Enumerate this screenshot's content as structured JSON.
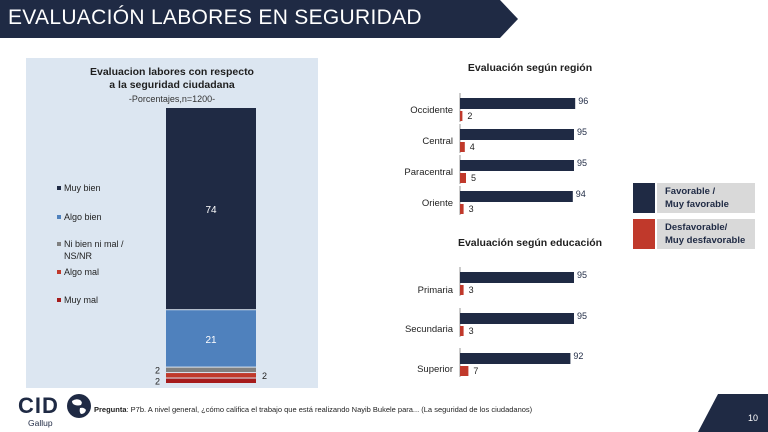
{
  "header": {
    "title": "EVALUACIÓN LABORES EN SEGURIDAD"
  },
  "colors": {
    "navy": "#1f2a44",
    "blue": "#4f81bd",
    "gray": "#808080",
    "red": "#c0392b",
    "darkred": "#a61c1c"
  },
  "chart_data": [
    {
      "type": "bar",
      "stacked": true,
      "title": "Evaluacion labores con respecto a la seguridad ciudadana",
      "title_lines": [
        "Evaluacion labores con respecto",
        "a la seguridad ciudadana"
      ],
      "subtitle": "-Porcentajes,n=1200-",
      "series": [
        {
          "name": "Muy bien",
          "value": 74,
          "color": "#1f2a44"
        },
        {
          "name": "Algo bien",
          "value": 21,
          "color": "#4f81bd"
        },
        {
          "name": "Ni bien ni mal / NS/NR",
          "value": 2,
          "color": "#808080"
        },
        {
          "name": "Algo mal",
          "value": 2,
          "color": "#c0392b"
        },
        {
          "name": "Muy mal",
          "value": 2,
          "color": "#a61c1c"
        }
      ],
      "legend_lines": [
        [
          "Muy bien"
        ],
        [
          "Algo bien"
        ],
        [
          "Ni bien ni mal /",
          "NS/NR"
        ],
        [
          "Algo mal"
        ],
        [
          "Muy mal"
        ]
      ],
      "segment_labels": [
        "74",
        "21",
        "2",
        "2",
        "2"
      ]
    },
    {
      "type": "bar",
      "orientation": "horizontal",
      "title": "Evaluación según región",
      "categories": [
        "Occidente",
        "Central",
        "Paracentral",
        "Oriente"
      ],
      "series": [
        {
          "name": "Favorable / Muy favorable",
          "values": [
            96,
            95,
            95,
            94
          ]
        },
        {
          "name": "Desfavorable/ Muy desfavorable",
          "values": [
            2,
            4,
            5,
            3
          ]
        }
      ],
      "xlim": [
        0,
        100
      ]
    },
    {
      "type": "bar",
      "orientation": "horizontal",
      "title": "Evaluación según educación",
      "categories": [
        "Primaria",
        "Secundaria",
        "Superior"
      ],
      "series": [
        {
          "name": "Favorable / Muy favorable",
          "values": [
            95,
            95,
            92
          ]
        },
        {
          "name": "Desfavorable/ Muy desfavorable",
          "values": [
            3,
            3,
            7
          ]
        }
      ],
      "xlim": [
        0,
        100
      ]
    }
  ],
  "legend": {
    "favorable": [
      "Favorable /",
      "Muy favorable"
    ],
    "desfavorable": [
      "Desfavorable/",
      "Muy desfavorable"
    ]
  },
  "footer": {
    "logo_text": "CID",
    "logo_sub": "Gallup",
    "question_label": "Pregunta",
    "question_text": ": P7b. A nivel general, ¿cómo califica el trabajo que está realizando Nayib Bukele para... (La seguridad de los ciudadanos)",
    "page_number": "10"
  }
}
